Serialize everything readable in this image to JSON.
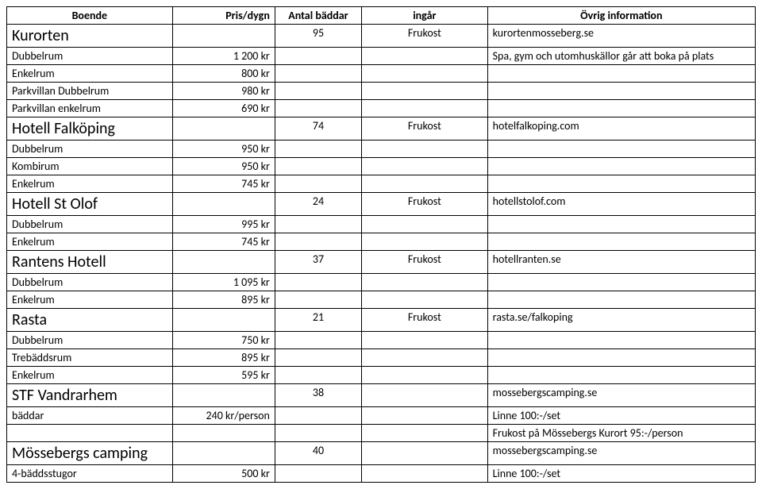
{
  "headers": {
    "boende": "Boende",
    "pris": "Pris/dygn",
    "baddar": "Antal bäddar",
    "ingar": "ingår",
    "ovrig": "Övrig information"
  },
  "sections": [
    {
      "title": "Kurorten",
      "beds": "95",
      "includes": "Frukost",
      "info1": "kurortenmosseberg.se",
      "rows": [
        {
          "name": "Dubbelrum",
          "price": "1 200 kr",
          "info": "Spa, gym och utomhuskällor går att boka på plats"
        },
        {
          "name": "Enkelrum",
          "price": "800 kr",
          "info": ""
        },
        {
          "name": "Parkvillan Dubbelrum",
          "price": "980 kr",
          "info": ""
        },
        {
          "name": "Parkvillan enkelrum",
          "price": "690 kr",
          "info": ""
        }
      ]
    },
    {
      "title": "Hotell Falköping",
      "beds": "74",
      "includes": "Frukost",
      "info1": "hotelfalkoping.com",
      "rows": [
        {
          "name": "Dubbelrum",
          "price": "950 kr",
          "info": ""
        },
        {
          "name": "Kombirum",
          "price": "950 kr",
          "info": ""
        },
        {
          "name": "Enkelrum",
          "price": "745 kr",
          "info": ""
        }
      ]
    },
    {
      "title": "Hotell St Olof",
      "beds": "24",
      "includes": "Frukost",
      "info1": "hotellstolof.com",
      "rows": [
        {
          "name": "Dubbelrum",
          "price": "995 kr",
          "info": ""
        },
        {
          "name": "Enkelrum",
          "price": "745 kr",
          "info": ""
        }
      ]
    },
    {
      "title": "Rantens Hotell",
      "beds": "37",
      "includes": "Frukost",
      "info1": "hotellranten.se",
      "rows": [
        {
          "name": "Dubbelrum",
          "price": "1 095 kr",
          "info": ""
        },
        {
          "name": "Enkelrum",
          "price": "895 kr",
          "info": ""
        }
      ]
    },
    {
      "title": "Rasta",
      "beds": "21",
      "includes": "Frukost",
      "info1": "rasta.se/falkoping",
      "rows": [
        {
          "name": "Dubbelrum",
          "price": "750 kr",
          "info": ""
        },
        {
          "name": "Trebäddsrum",
          "price": "895 kr",
          "info": ""
        },
        {
          "name": "Enkelrum",
          "price": "595 kr",
          "info": ""
        }
      ]
    },
    {
      "title": "STF Vandrarhem",
      "beds": "38",
      "includes": "",
      "info1": "mossebergscamping.se",
      "rows": [
        {
          "name": "bäddar",
          "price": "240 kr/person",
          "info": "Linne 100:-/set"
        },
        {
          "name": "",
          "price": "",
          "info": "Frukost på Mössebergs Kurort 95:-/person"
        }
      ]
    },
    {
      "title": "Mössebergs camping",
      "beds": "40",
      "includes": "",
      "info1": "mossebergscamping.se",
      "rows": [
        {
          "name": "4-bäddsstugor",
          "price": "500 kr",
          "info": "Linne 100:-/set"
        }
      ]
    }
  ]
}
